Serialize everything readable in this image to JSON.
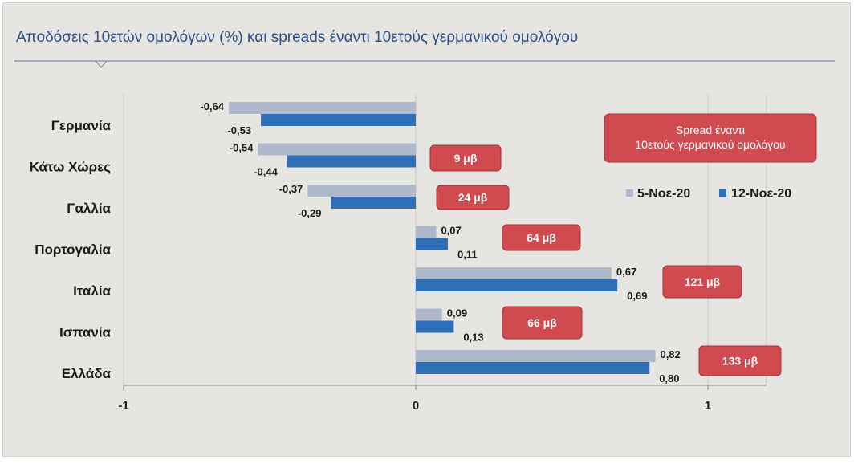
{
  "colors": {
    "series_1": "#aeb8cb",
    "series_2": "#2f6fb7",
    "spread_box": "#cf4b4f",
    "spread_box_border": "#a83236",
    "title": "#2e4f86"
  },
  "chart_data": {
    "type": "bar",
    "orientation": "horizontal",
    "title": "Αποδόσεις 10ετών ομολόγων (%) και spreads έναντι 10ετούς γερμανικού ομολόγου",
    "categories": [
      "Γερμανία",
      "Κάτω Χώρες",
      "Γαλλία",
      "Πορτογαλία",
      "Ιταλία",
      "Ισπανία",
      "Ελλάδα"
    ],
    "series": [
      {
        "name": "5-Νοε-20",
        "values": [
          -0.64,
          -0.54,
          -0.37,
          0.07,
          0.67,
          0.09,
          0.82
        ],
        "labels": [
          "-0,64",
          "-0,54",
          "-0,37",
          "0,07",
          "0,67",
          "0,09",
          "0,82"
        ]
      },
      {
        "name": "12-Νοε-20",
        "values": [
          -0.53,
          -0.44,
          -0.29,
          0.11,
          0.69,
          0.13,
          0.8
        ],
        "labels": [
          "-0,53",
          "-0,44",
          "-0,29",
          "0,11",
          "0,69",
          "0,13",
          "0,80"
        ]
      }
    ],
    "xlim": [
      -1,
      1.2
    ],
    "xticks": [
      -1,
      0,
      1
    ],
    "xtick_labels": [
      "-1",
      "0",
      "1"
    ],
    "grid": true,
    "legend_position": "right",
    "spread_note": "Spread έναντι 10ετούς γερμανικού ομολόγου",
    "spreads": [
      {
        "category": "Κάτω Χώρες",
        "label": "9 μβ"
      },
      {
        "category": "Γαλλία",
        "label": "24 μβ"
      },
      {
        "category": "Πορτογαλία",
        "label": "64 μβ"
      },
      {
        "category": "Ιταλία",
        "label": "121 μβ"
      },
      {
        "category": "Ισπανία",
        "label": "66 μβ"
      },
      {
        "category": "Ελλάδα",
        "label": "133 μβ"
      }
    ]
  }
}
